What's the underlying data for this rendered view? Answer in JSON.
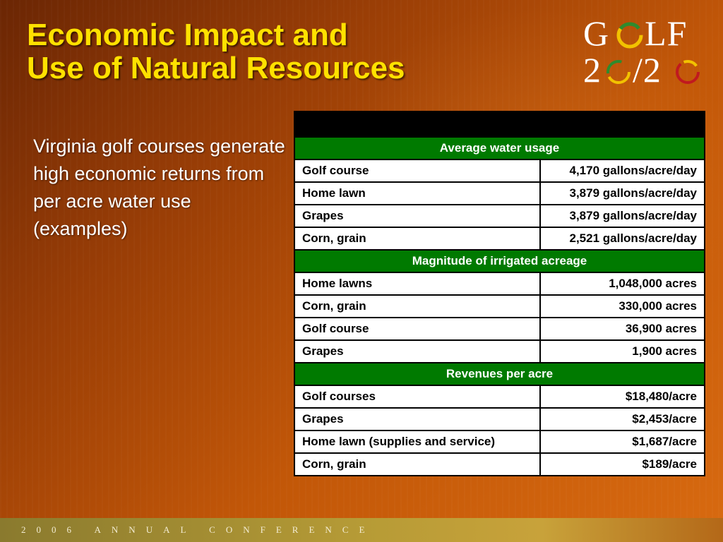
{
  "title": {
    "line1": "Economic Impact and",
    "line2": "Use of Natural Resources"
  },
  "logo": {
    "row1": [
      "G",
      "LF"
    ],
    "row2": [
      "2",
      "/2"
    ]
  },
  "body_text": "Virginia golf courses generate high economic returns from per acre water use (examples)",
  "table": {
    "sections": [
      {
        "header": "Average water usage",
        "rows": [
          {
            "label": "Golf course",
            "value": "4,170 gallons/acre/day"
          },
          {
            "label": "Home lawn",
            "value": "3,879 gallons/acre/day"
          },
          {
            "label": "Grapes",
            "value": "3,879 gallons/acre/day"
          },
          {
            "label": "Corn, grain",
            "value": "2,521 gallons/acre/day"
          }
        ]
      },
      {
        "header": "Magnitude of irrigated acreage",
        "rows": [
          {
            "label": "Home lawns",
            "value": "1,048,000 acres"
          },
          {
            "label": "Corn, grain",
            "value": "330,000 acres"
          },
          {
            "label": "Golf course",
            "value": "36,900 acres"
          },
          {
            "label": "Grapes",
            "value": "1,900 acres"
          }
        ]
      },
      {
        "header": "Revenues per acre",
        "rows": [
          {
            "label": "Golf courses",
            "value": "$18,480/acre"
          },
          {
            "label": "Grapes",
            "value": "$2,453/acre"
          },
          {
            "label": "Home lawn (supplies and service)",
            "value": "$1,687/acre"
          },
          {
            "label": "Corn, grain",
            "value": "$189/acre"
          }
        ]
      }
    ]
  },
  "footer_text": "2006 ANNUAL CONFERENCE",
  "colors": {
    "title": "#ffe100",
    "section_header": "#007a00",
    "table_band": "#000000",
    "logo_ring_1": "#f2c200",
    "logo_ring_2": "#2e8b2e",
    "logo_ring_3": "#c0191f"
  }
}
